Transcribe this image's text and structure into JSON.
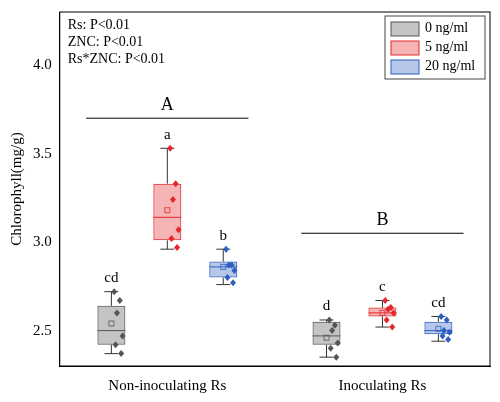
{
  "chart_data": {
    "type": "boxplot",
    "y_label": "Chlorophyll(mg/g)",
    "categories": [
      "Non-inoculating Rs",
      "Inoculating Rs"
    ],
    "ylim": [
      2.3,
      4.3
    ],
    "yticks": [
      {
        "value": 2.5,
        "label": "2.5"
      },
      {
        "value": 3.0,
        "label": "3.0"
      },
      {
        "value": 3.5,
        "label": "3.5"
      },
      {
        "value": 4.0,
        "label": "4.0"
      }
    ],
    "grid": false,
    "legend": "upper right",
    "stats_text": [
      "Rs: P<0.01",
      "ZNC: P<0.01",
      "Rs*ZNC: P<0.01"
    ],
    "group_letters": [
      {
        "text": "A",
        "category": "Non-inoculating Rs",
        "y": 3.7
      },
      {
        "text": "B",
        "category": "Inoculating Rs",
        "y": 3.05
      }
    ],
    "series": [
      {
        "name": "0 ng/ml",
        "color": "#555555",
        "letters": [
          "cd",
          "d"
        ],
        "whisker_low": [
          2.37,
          2.35
        ],
        "q1": [
          2.42,
          2.42
        ],
        "median": [
          2.5,
          2.47
        ],
        "q3": [
          2.64,
          2.55
        ],
        "whisker_high": [
          2.72,
          2.56
        ],
        "mean": [
          2.54,
          2.46
        ],
        "points": [
          [
            2.72,
            2.67,
            2.6,
            2.47,
            2.42,
            2.37
          ],
          [
            2.56,
            2.53,
            2.5,
            2.43,
            2.4,
            2.35
          ]
        ]
      },
      {
        "name": "5 ng/ml",
        "color": "#e3272b",
        "letters": [
          "a",
          "c"
        ],
        "whisker_low": [
          2.96,
          2.52
        ],
        "q1": [
          3.01,
          2.58
        ],
        "median": [
          3.14,
          2.6
        ],
        "q3": [
          3.33,
          2.63
        ],
        "whisker_high": [
          3.53,
          2.67
        ],
        "mean": [
          3.18,
          2.6
        ],
        "points": [
          [
            3.53,
            3.33,
            3.24,
            3.07,
            3.02,
            2.97
          ],
          [
            2.67,
            2.63,
            2.62,
            2.6,
            2.56,
            2.52
          ]
        ]
      },
      {
        "name": "20 ng/ml",
        "color": "#2f5fc0",
        "letters": [
          "b",
          "cd"
        ],
        "whisker_low": [
          2.76,
          2.44
        ],
        "q1": [
          2.8,
          2.48
        ],
        "median": [
          2.86,
          2.5
        ],
        "q3": [
          2.89,
          2.55
        ],
        "whisker_high": [
          2.96,
          2.58
        ],
        "mean": [
          2.86,
          2.51
        ],
        "points": [
          [
            2.96,
            2.87,
            2.87,
            2.84,
            2.8,
            2.77
          ],
          [
            2.58,
            2.56,
            2.5,
            2.49,
            2.47,
            2.45
          ]
        ]
      }
    ]
  }
}
